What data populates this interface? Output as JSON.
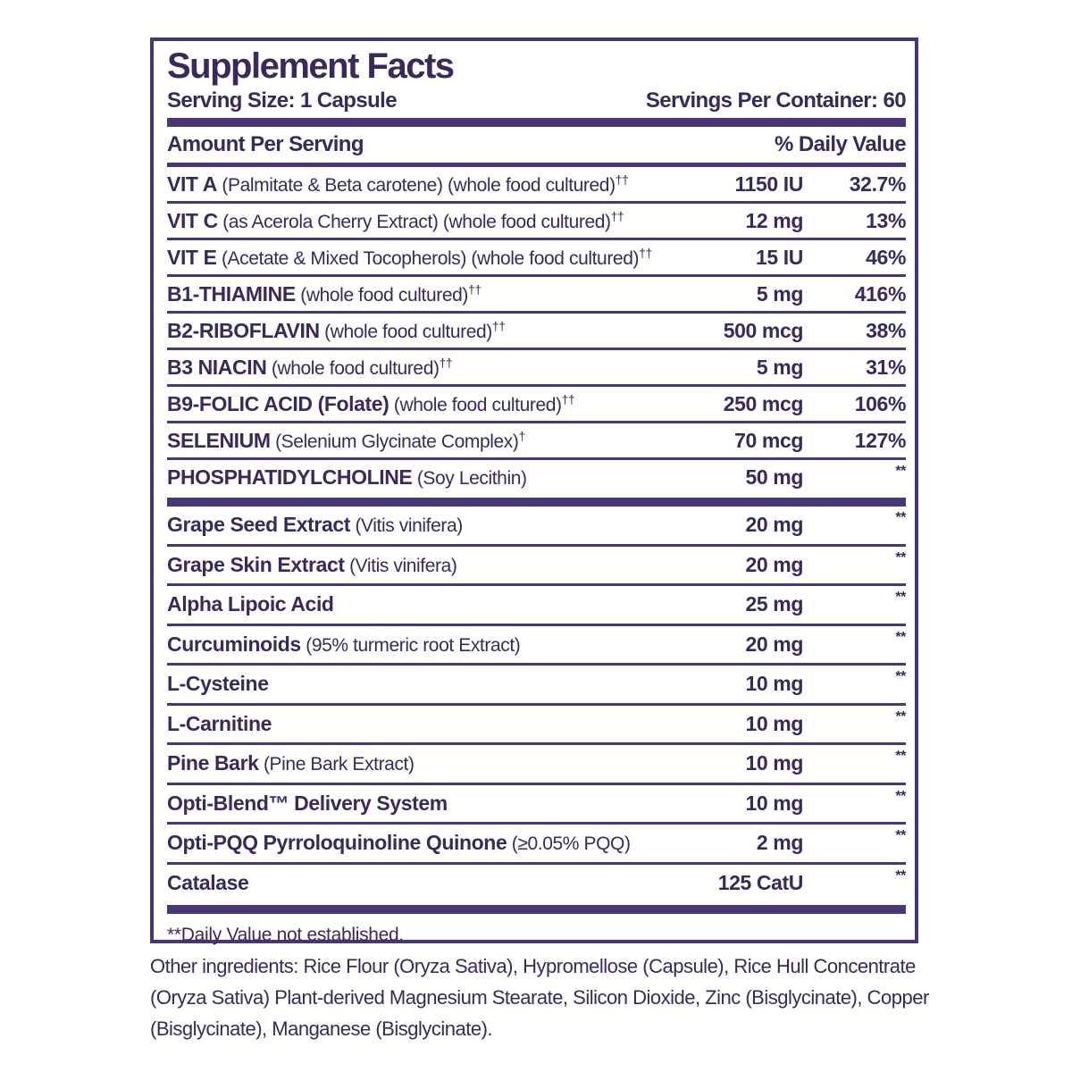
{
  "title": "Supplement Facts",
  "serving_size": "Serving Size: 1 Capsule",
  "servings_per_container": "Servings Per Container: 60",
  "header": {
    "amount": "Amount Per Serving",
    "daily_value": "% Daily Value"
  },
  "sections": [
    {
      "rows": [
        {
          "name": "VIT A",
          "detail": "(Palmitate & Beta carotene) (whole food cultured)",
          "note": "††",
          "amount": "1150 IU",
          "dv": "32.7%"
        },
        {
          "name": "VIT C",
          "detail": "(as Acerola Cherry Extract) (whole food cultured)",
          "note": "††",
          "amount": "12 mg",
          "dv": "13%"
        },
        {
          "name": "VIT E",
          "detail": "(Acetate & Mixed Tocopherols) (whole food cultured)",
          "note": "††",
          "amount": "15 IU",
          "dv": "46%"
        },
        {
          "name": "B1-THIAMINE",
          "detail": "(whole food cultured)",
          "note": "††",
          "amount": "5 mg",
          "dv": "416%"
        },
        {
          "name": "B2-RIBOFLAVIN",
          "detail": "(whole food cultured)",
          "note": "††",
          "amount": "500 mcg",
          "dv": "38%"
        },
        {
          "name": "B3 NIACIN",
          "detail": "(whole food cultured)",
          "note": "††",
          "amount": "5 mg",
          "dv": "31%"
        },
        {
          "name": "B9-FOLIC ACID (Folate)",
          "detail": "(whole food cultured)",
          "note": "††",
          "amount": "250 mcg",
          "dv": "106%"
        },
        {
          "name": "SELENIUM",
          "detail": "(Selenium Glycinate Complex)",
          "note": "†",
          "amount": "70 mcg",
          "dv": "127%"
        },
        {
          "name": "PHOSPHATIDYLCHOLINE",
          "detail": "(Soy Lecithin)",
          "amount": "50 mg",
          "dv": "**"
        }
      ]
    },
    {
      "rows": [
        {
          "name": "Grape Seed Extract",
          "detail": "(Vitis vinifera)",
          "amount": "20 mg",
          "dv": "**"
        },
        {
          "name": "Grape Skin Extract",
          "detail": "(Vitis vinifera)",
          "amount": "20 mg",
          "dv": "**"
        },
        {
          "name": "Alpha Lipoic Acid",
          "amount": "25 mg",
          "dv": "**"
        },
        {
          "name": "Curcuminoids",
          "detail": "(95% turmeric root Extract)",
          "amount": "20 mg",
          "dv": "**"
        },
        {
          "name": "L-Cysteine",
          "amount": "10 mg",
          "dv": "**"
        },
        {
          "name": "L-Carnitine",
          "amount": "10 mg",
          "dv": "**"
        },
        {
          "name": "Pine Bark",
          "detail": "(Pine Bark Extract)",
          "amount": "10 mg",
          "dv": "**"
        },
        {
          "name": "Opti-Blend™ Delivery System",
          "amount": "10 mg",
          "dv": "**"
        },
        {
          "name": "Opti-PQQ Pyrroloquinoline Quinone",
          "detail": "(≥0.05% PQQ)",
          "amount": "2 mg",
          "dv": "**"
        },
        {
          "name": "Catalase",
          "amount": "125 CatU",
          "dv": "**"
        }
      ]
    }
  ],
  "footnote": "**Daily Value not established.",
  "other_ingredients": "Other ingredients: Rice Flour (Oryza Sativa),  Hypromellose (Capsule), Rice Hull Concentrate (Oryza Sativa) Plant-derived Magnesium Stearate, Silicon Dioxide, Zinc (Bisglycinate), Copper (Bisglycinate), Manganese (Bisglycinate)."
}
